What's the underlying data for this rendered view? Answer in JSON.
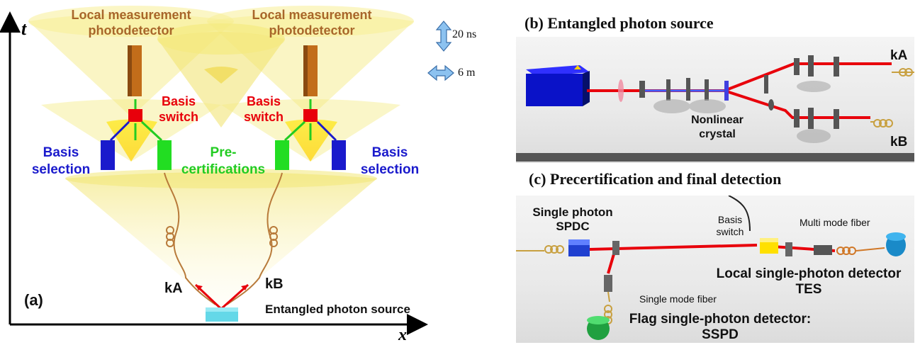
{
  "panel_a": {
    "axis_t": "t",
    "axis_x": "x",
    "label": "(a)",
    "local_measurement_left": [
      "Local measurement",
      "photodetector"
    ],
    "local_measurement_right": [
      "Local measurement",
      "photodetector"
    ],
    "basis_switch_left": [
      "Basis",
      "switch"
    ],
    "basis_switch_right": [
      "Basis",
      "switch"
    ],
    "basis_selection_left": [
      "Basis",
      "selection"
    ],
    "basis_selection_right": [
      "Basis",
      "selection"
    ],
    "precertifications": [
      "Pre-",
      "certifications"
    ],
    "kA": "kA",
    "kB": "kB",
    "source": "Entangled photon source",
    "scale_time": "20 ns",
    "scale_space": "6 m"
  },
  "panel_b": {
    "title": "(b)  Entangled photon source",
    "kA": "kA",
    "kB": "kB",
    "crystal": [
      "Nonlinear",
      "crystal"
    ]
  },
  "panel_c": {
    "title": "(c)  Precertification and final detection",
    "single_photon": [
      "Single photon",
      "SPDC"
    ],
    "basis_switch": [
      "Basis",
      "switch"
    ],
    "multimode": "Multi mode fiber",
    "local_detector": [
      "Local single-photon detector",
      "TES"
    ],
    "single_mode": "Single mode fiber",
    "flag_detector": [
      "Flag single-photon detector:",
      "SSPD"
    ]
  },
  "colors": {
    "cone": "#f3e55a",
    "brown": "#b07030",
    "red": "#e8000b",
    "blue": "#1a1acc",
    "green": "#22cc22"
  }
}
